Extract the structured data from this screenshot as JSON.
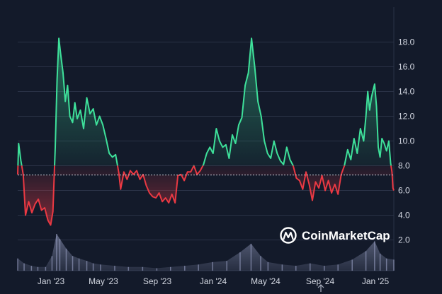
{
  "chart_data": {
    "type": "area",
    "title": "",
    "xlabel": "",
    "ylabel": "",
    "x_ticks": [
      "Jan '23",
      "May '23",
      "Sep '23",
      "Jan '24",
      "May '24",
      "Sep '24",
      "Jan '25"
    ],
    "y_ticks": [
      "2.0",
      "4.0",
      "6.0",
      "8.0",
      "10.0",
      "12.0",
      "14.0",
      "16.0",
      "18.0"
    ],
    "ylim": [
      0,
      19.3
    ],
    "xlim": [
      "2022-11",
      "2025-02"
    ],
    "baseline": 7.25,
    "grid": true,
    "colors": {
      "above": "#3ee09a",
      "below": "#ea3943",
      "grid": "#2a3246",
      "baseline": "#c8ccd6",
      "volume": "#8e96b8"
    },
    "series": [
      {
        "values": [
          [
            "2022-11-01",
            7.3
          ],
          [
            "2022-11-03",
            9.8
          ],
          [
            "2022-11-08",
            8.4
          ],
          [
            "2022-11-13",
            7.3
          ],
          [
            "2022-11-18",
            4.0
          ],
          [
            "2022-11-25",
            5.1
          ],
          [
            "2022-12-02",
            4.2
          ],
          [
            "2022-12-09",
            4.9
          ],
          [
            "2022-12-16",
            5.3
          ],
          [
            "2022-12-23",
            4.4
          ],
          [
            "2022-12-30",
            4.6
          ],
          [
            "2023-01-06",
            3.6
          ],
          [
            "2023-01-12",
            3.2
          ],
          [
            "2023-01-17",
            4.3
          ],
          [
            "2023-01-22",
            9.5
          ],
          [
            "2023-01-26",
            15.0
          ],
          [
            "2023-01-30",
            18.3
          ],
          [
            "2023-02-03",
            17.0
          ],
          [
            "2023-02-08",
            15.5
          ],
          [
            "2023-02-13",
            13.2
          ],
          [
            "2023-02-18",
            14.5
          ],
          [
            "2023-02-23",
            12.0
          ],
          [
            "2023-03-01",
            11.5
          ],
          [
            "2023-03-06",
            13.1
          ],
          [
            "2023-03-11",
            11.8
          ],
          [
            "2023-03-18",
            12.5
          ],
          [
            "2023-03-25",
            11.0
          ],
          [
            "2023-04-01",
            13.5
          ],
          [
            "2023-04-08",
            12.2
          ],
          [
            "2023-04-15",
            12.6
          ],
          [
            "2023-04-22",
            11.3
          ],
          [
            "2023-04-29",
            12.0
          ],
          [
            "2023-05-06",
            11.3
          ],
          [
            "2023-05-13",
            10.2
          ],
          [
            "2023-05-20",
            9.0
          ],
          [
            "2023-05-27",
            8.7
          ],
          [
            "2023-06-03",
            8.9
          ],
          [
            "2023-06-10",
            7.4
          ],
          [
            "2023-06-14",
            6.1
          ],
          [
            "2023-06-21",
            7.5
          ],
          [
            "2023-06-28",
            6.9
          ],
          [
            "2023-07-05",
            7.6
          ],
          [
            "2023-07-12",
            7.3
          ],
          [
            "2023-07-19",
            7.6
          ],
          [
            "2023-07-26",
            6.9
          ],
          [
            "2023-08-02",
            7.3
          ],
          [
            "2023-08-09",
            6.4
          ],
          [
            "2023-08-16",
            5.8
          ],
          [
            "2023-08-23",
            5.5
          ],
          [
            "2023-08-30",
            5.4
          ],
          [
            "2023-09-06",
            5.8
          ],
          [
            "2023-09-13",
            5.1
          ],
          [
            "2023-09-20",
            5.4
          ],
          [
            "2023-09-27",
            5.0
          ],
          [
            "2023-10-04",
            5.7
          ],
          [
            "2023-10-11",
            5.0
          ],
          [
            "2023-10-17",
            7.2
          ],
          [
            "2023-10-24",
            7.3
          ],
          [
            "2023-10-31",
            6.8
          ],
          [
            "2023-11-07",
            7.5
          ],
          [
            "2023-11-14",
            7.5
          ],
          [
            "2023-11-21",
            8.0
          ],
          [
            "2023-11-28",
            7.3
          ],
          [
            "2023-12-05",
            7.6
          ],
          [
            "2023-12-12",
            8.1
          ],
          [
            "2023-12-19",
            9.0
          ],
          [
            "2023-12-26",
            9.5
          ],
          [
            "2024-01-02",
            9.0
          ],
          [
            "2024-01-09",
            11.0
          ],
          [
            "2024-01-16",
            10.0
          ],
          [
            "2024-01-23",
            9.5
          ],
          [
            "2024-01-30",
            9.7
          ],
          [
            "2024-02-06",
            8.6
          ],
          [
            "2024-02-13",
            10.5
          ],
          [
            "2024-02-20",
            9.8
          ],
          [
            "2024-02-27",
            11.3
          ],
          [
            "2024-03-05",
            11.9
          ],
          [
            "2024-03-12",
            14.5
          ],
          [
            "2024-03-19",
            15.5
          ],
          [
            "2024-03-26",
            18.3
          ],
          [
            "2024-04-02",
            16.0
          ],
          [
            "2024-04-09",
            13.2
          ],
          [
            "2024-04-16",
            12.0
          ],
          [
            "2024-04-23",
            10.0
          ],
          [
            "2024-04-30",
            9.0
          ],
          [
            "2024-05-07",
            8.6
          ],
          [
            "2024-05-14",
            10.0
          ],
          [
            "2024-05-21",
            9.0
          ],
          [
            "2024-05-28",
            8.4
          ],
          [
            "2024-06-04",
            8.1
          ],
          [
            "2024-06-11",
            9.5
          ],
          [
            "2024-06-18",
            8.5
          ],
          [
            "2024-06-25",
            8.0
          ],
          [
            "2024-07-02",
            7.0
          ],
          [
            "2024-07-09",
            6.8
          ],
          [
            "2024-07-16",
            6.1
          ],
          [
            "2024-07-23",
            7.5
          ],
          [
            "2024-07-30",
            6.5
          ],
          [
            "2024-08-06",
            5.2
          ],
          [
            "2024-08-13",
            6.7
          ],
          [
            "2024-08-20",
            6.2
          ],
          [
            "2024-08-27",
            7.2
          ],
          [
            "2024-09-03",
            6.0
          ],
          [
            "2024-09-10",
            6.8
          ],
          [
            "2024-09-17",
            5.8
          ],
          [
            "2024-09-24",
            6.5
          ],
          [
            "2024-10-01",
            5.7
          ],
          [
            "2024-10-08",
            7.3
          ],
          [
            "2024-10-15",
            8.0
          ],
          [
            "2024-10-22",
            9.3
          ],
          [
            "2024-10-29",
            8.5
          ],
          [
            "2024-11-05",
            10.2
          ],
          [
            "2024-11-12",
            9.0
          ],
          [
            "2024-11-19",
            11.0
          ],
          [
            "2024-11-26",
            10.0
          ],
          [
            "2024-12-01",
            12.0
          ],
          [
            "2024-12-05",
            14.0
          ],
          [
            "2024-12-09",
            12.5
          ],
          [
            "2024-12-13",
            13.5
          ],
          [
            "2024-12-16",
            14.0
          ],
          [
            "2024-12-20",
            14.6
          ],
          [
            "2024-12-24",
            12.8
          ],
          [
            "2024-12-28",
            9.5
          ],
          [
            "2025-01-01",
            8.7
          ],
          [
            "2025-01-05",
            10.2
          ],
          [
            "2025-01-10",
            9.8
          ],
          [
            "2025-01-15",
            9.2
          ],
          [
            "2025-01-20",
            10.0
          ],
          [
            "2025-01-24",
            8.2
          ],
          [
            "2025-01-27",
            7.5
          ],
          [
            "2025-01-29",
            6.2
          ],
          [
            "2025-01-31",
            6.0
          ]
        ]
      }
    ],
    "volume": [
      [
        "2022-11-01",
        1.0
      ],
      [
        "2022-11-15",
        0.6
      ],
      [
        "2022-12-01",
        0.4
      ],
      [
        "2022-12-15",
        0.3
      ],
      [
        "2023-01-01",
        0.3
      ],
      [
        "2023-01-15",
        1.2
      ],
      [
        "2023-01-25",
        3.0
      ],
      [
        "2023-02-01",
        2.6
      ],
      [
        "2023-02-15",
        1.8
      ],
      [
        "2023-03-01",
        1.2
      ],
      [
        "2023-03-15",
        1.0
      ],
      [
        "2023-04-01",
        0.8
      ],
      [
        "2023-04-15",
        0.6
      ],
      [
        "2023-05-01",
        0.5
      ],
      [
        "2023-06-01",
        0.4
      ],
      [
        "2023-07-01",
        0.3
      ],
      [
        "2023-08-01",
        0.3
      ],
      [
        "2023-09-01",
        0.2
      ],
      [
        "2023-10-01",
        0.3
      ],
      [
        "2023-11-01",
        0.4
      ],
      [
        "2023-12-01",
        0.5
      ],
      [
        "2024-01-01",
        0.7
      ],
      [
        "2024-02-01",
        0.8
      ],
      [
        "2024-03-01",
        1.5
      ],
      [
        "2024-03-25",
        2.2
      ],
      [
        "2024-04-15",
        1.2
      ],
      [
        "2024-05-01",
        0.7
      ],
      [
        "2024-06-01",
        0.5
      ],
      [
        "2024-07-01",
        0.4
      ],
      [
        "2024-08-01",
        0.6
      ],
      [
        "2024-09-01",
        0.4
      ],
      [
        "2024-10-01",
        0.5
      ],
      [
        "2024-11-01",
        0.9
      ],
      [
        "2024-12-01",
        1.6
      ],
      [
        "2024-12-20",
        2.4
      ],
      [
        "2025-01-01",
        1.4
      ],
      [
        "2025-01-15",
        1.0
      ],
      [
        "2025-01-31",
        0.9
      ]
    ],
    "volume_max": 3.0,
    "watermark": "CoinMarketCap"
  }
}
